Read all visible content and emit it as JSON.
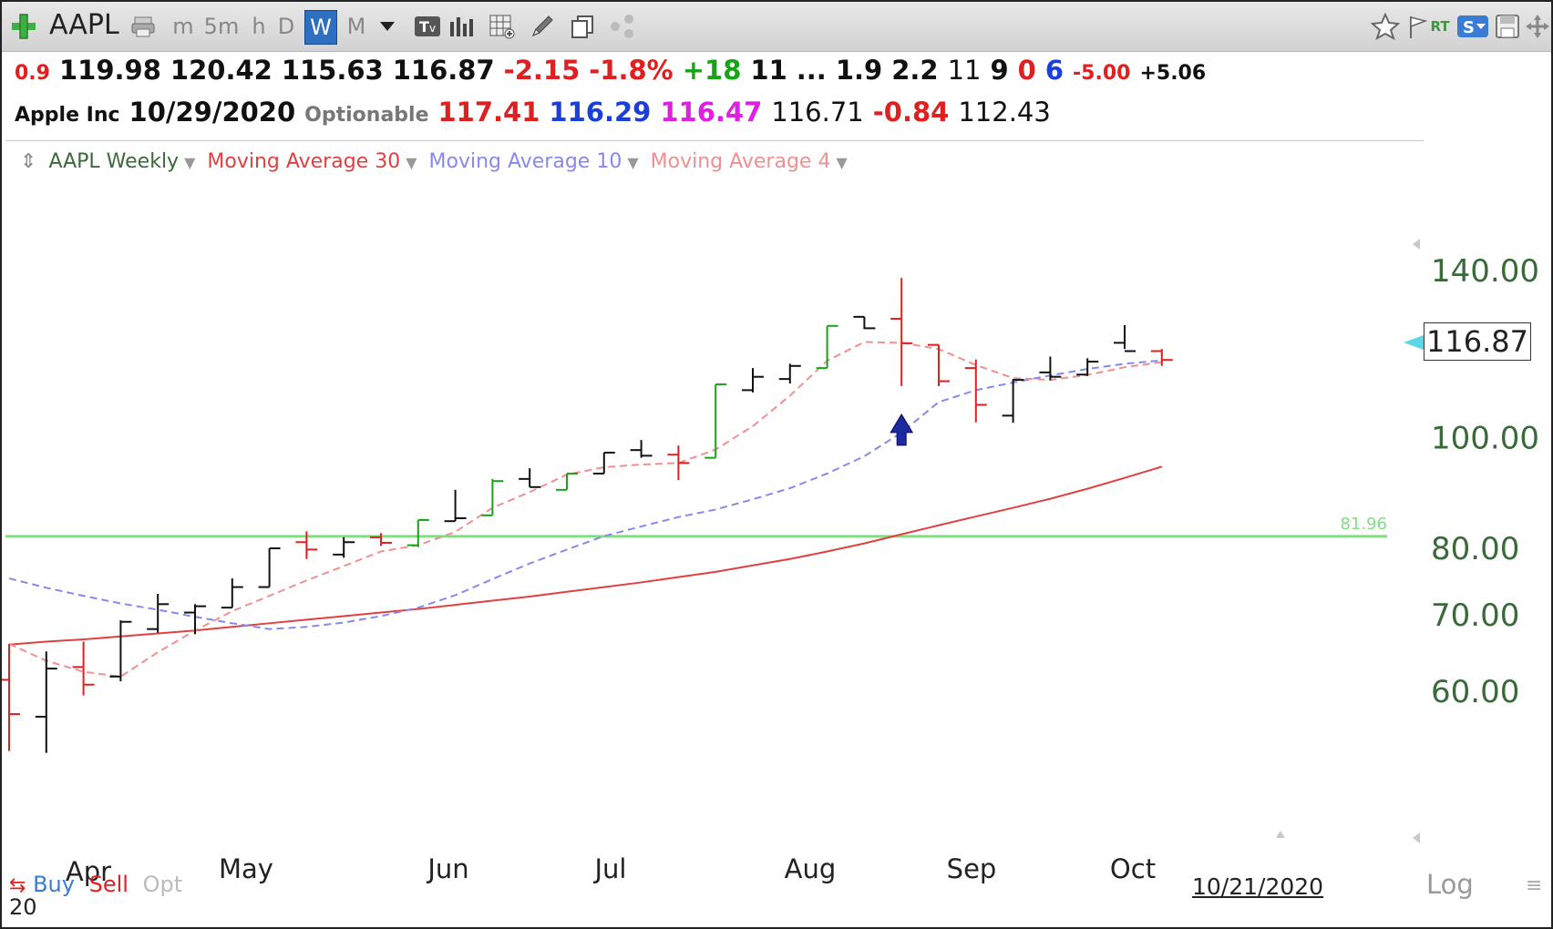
{
  "toolbar": {
    "symbol": "AAPL",
    "timeframes": [
      {
        "label": "m",
        "active": false
      },
      {
        "label": "5m",
        "active": false
      },
      {
        "label": "h",
        "active": false
      },
      {
        "label": "D",
        "active": false
      },
      {
        "label": "W",
        "active": true
      },
      {
        "label": "M",
        "active": false
      }
    ],
    "icons": [
      "add-icon",
      "print-icon",
      "dropdown-icon",
      "type-icon",
      "bar-chart-icon",
      "calculator-icon",
      "pencil-icon",
      "copy-icon",
      "share-icon",
      "star-icon",
      "flag-icon",
      "rt-icon",
      "s-badge-icon",
      "save-icon",
      "move-icon"
    ],
    "rt_label": "RT",
    "s_badge": "S"
  },
  "quote_row1": [
    {
      "text": "0.9",
      "color": "#e02020",
      "size": "s"
    },
    {
      "text": "119.98",
      "color": "#111111"
    },
    {
      "text": "120.42",
      "color": "#111111"
    },
    {
      "text": "115.63",
      "color": "#111111"
    },
    {
      "text": "116.87",
      "color": "#111111"
    },
    {
      "text": "-2.15",
      "color": "#e02020"
    },
    {
      "text": "-1.8%",
      "color": "#e02020"
    },
    {
      "text": "+18",
      "color": "#19a319"
    },
    {
      "text": "11",
      "color": "#111111"
    },
    {
      "text": "...",
      "color": "#111111"
    },
    {
      "text": "1.9",
      "color": "#111111"
    },
    {
      "text": "2.2",
      "color": "#111111"
    },
    {
      "text": "11",
      "color": "#111111",
      "weight": "n"
    },
    {
      "text": "9",
      "color": "#111111"
    },
    {
      "text": "0",
      "color": "#e02020"
    },
    {
      "text": "6",
      "color": "#1a40d8"
    },
    {
      "text": "-5.00",
      "color": "#e02020",
      "size": "s"
    },
    {
      "text": "+5.06",
      "color": "#111111",
      "size": "s"
    }
  ],
  "quote_row2": [
    {
      "text": "Apple Inc",
      "color": "#111111",
      "size": "s"
    },
    {
      "text": "10/29/2020",
      "color": "#111111"
    },
    {
      "text": "Optionable",
      "color": "#777777",
      "size": "s"
    },
    {
      "text": "117.41",
      "color": "#e02020"
    },
    {
      "text": "116.29",
      "color": "#1a40d8"
    },
    {
      "text": "116.47",
      "color": "#e020e0"
    },
    {
      "text": "116.71",
      "color": "#111111",
      "weight": "n"
    },
    {
      "text": "-0.84",
      "color": "#e02020"
    },
    {
      "text": "112.43",
      "color": "#111111",
      "weight": "n"
    }
  ],
  "legend": {
    "series": [
      {
        "label": "AAPL Weekly",
        "color": "#3a6a3a"
      },
      {
        "label": "Moving Average 30",
        "color": "#e04040"
      },
      {
        "label": "Moving Average 10",
        "color": "#8888f0"
      },
      {
        "label": "Moving Average 4",
        "color": "#f09090"
      }
    ]
  },
  "chart_data": {
    "type": "ohlc",
    "scale": "log",
    "xlabels": [
      "Apr",
      "May",
      "Jun",
      "Jul",
      "Aug",
      "Sep",
      "Oct"
    ],
    "yticks": [
      "140.00",
      "100.00",
      "80.00",
      "70.00",
      "60.00"
    ],
    "current_price": "116.87",
    "reference_line": {
      "value": 81.96,
      "label": "81.96",
      "color": "#7ee07e"
    },
    "bars": [
      {
        "o": 61.4,
        "h": 66.0,
        "l": 53.2,
        "c": 57.3,
        "color": "#e02020"
      },
      {
        "o": 57.0,
        "h": 65.0,
        "l": 53.0,
        "c": 62.8,
        "color": "#111111"
      },
      {
        "o": 63.0,
        "h": 66.3,
        "l": 59.5,
        "c": 60.8,
        "color": "#e02020"
      },
      {
        "o": 61.8,
        "h": 69.2,
        "l": 61.2,
        "c": 69.0,
        "color": "#111111"
      },
      {
        "o": 68.0,
        "h": 73.0,
        "l": 67.5,
        "c": 71.5,
        "color": "#111111"
      },
      {
        "o": 70.3,
        "h": 71.5,
        "l": 67.3,
        "c": 71.2,
        "color": "#111111"
      },
      {
        "o": 71.0,
        "h": 75.3,
        "l": 71.0,
        "c": 74.0,
        "color": "#111111"
      },
      {
        "o": 74.0,
        "h": 80.0,
        "l": 74.0,
        "c": 80.0,
        "color": "#111111"
      },
      {
        "o": 81.0,
        "h": 82.8,
        "l": 78.3,
        "c": 79.8,
        "color": "#e02020"
      },
      {
        "o": 79.0,
        "h": 81.8,
        "l": 78.5,
        "c": 81.0,
        "color": "#111111"
      },
      {
        "o": 81.8,
        "h": 82.5,
        "l": 80.4,
        "c": 80.9,
        "color": "#e02020"
      },
      {
        "o": 80.5,
        "h": 84.7,
        "l": 80.2,
        "c": 84.7,
        "color": "#19a319"
      },
      {
        "o": 84.5,
        "h": 90.0,
        "l": 84.5,
        "c": 85.0,
        "color": "#111111"
      },
      {
        "o": 85.5,
        "h": 92.0,
        "l": 85.5,
        "c": 91.6,
        "color": "#19a319"
      },
      {
        "o": 92.0,
        "h": 94.0,
        "l": 90.5,
        "c": 90.5,
        "color": "#111111"
      },
      {
        "o": 90.0,
        "h": 93.0,
        "l": 90.0,
        "c": 93.0,
        "color": "#19a319"
      },
      {
        "o": 93.0,
        "h": 97.0,
        "l": 93.0,
        "c": 97.0,
        "color": "#111111"
      },
      {
        "o": 97.5,
        "h": 99.5,
        "l": 96.0,
        "c": 96.4,
        "color": "#111111"
      },
      {
        "o": 96.6,
        "h": 98.4,
        "l": 91.8,
        "c": 95.0,
        "color": "#e02020"
      },
      {
        "o": 96.0,
        "h": 111.3,
        "l": 96.0,
        "c": 111.3,
        "color": "#19a319"
      },
      {
        "o": 110.0,
        "h": 115.0,
        "l": 109.5,
        "c": 113.0,
        "color": "#111111"
      },
      {
        "o": 112.5,
        "h": 116.0,
        "l": 111.5,
        "c": 115.5,
        "color": "#111111"
      },
      {
        "o": 115.0,
        "h": 125.2,
        "l": 115.0,
        "c": 125.2,
        "color": "#19a319"
      },
      {
        "o": 127.5,
        "h": 127.5,
        "l": 124.4,
        "c": 124.6,
        "color": "#111111"
      },
      {
        "o": 127.0,
        "h": 137.9,
        "l": 110.9,
        "c": 120.9,
        "color": "#e02020"
      },
      {
        "o": 120.5,
        "h": 120.5,
        "l": 110.9,
        "c": 112.0,
        "color": "#e02020"
      },
      {
        "o": 115.0,
        "h": 117.0,
        "l": 103.1,
        "c": 106.8,
        "color": "#e02020"
      },
      {
        "o": 104.5,
        "h": 112.5,
        "l": 103.0,
        "c": 112.3,
        "color": "#111111"
      },
      {
        "o": 114.0,
        "h": 117.7,
        "l": 112.2,
        "c": 113.0,
        "color": "#111111"
      },
      {
        "o": 113.5,
        "h": 117.3,
        "l": 113.2,
        "c": 116.5,
        "color": "#111111"
      },
      {
        "o": 121.0,
        "h": 125.4,
        "l": 119.5,
        "c": 119.0,
        "color": "#111111"
      },
      {
        "o": 119.0,
        "h": 119.5,
        "l": 115.5,
        "c": 116.9,
        "color": "#e02020"
      }
    ],
    "ma30": [
      65.9,
      66.3,
      66.6,
      67.0,
      67.4,
      67.8,
      68.3,
      68.8,
      69.3,
      69.8,
      70.3,
      70.8,
      71.4,
      72.0,
      72.6,
      73.3,
      74.0,
      74.7,
      75.5,
      76.3,
      77.3,
      78.3,
      79.5,
      80.8,
      82.3,
      83.8,
      85.3,
      86.8,
      88.4,
      90.2,
      92.2,
      94.3
    ],
    "ma10": [
      75.3,
      73.9,
      72.7,
      71.6,
      70.7,
      69.7,
      68.8,
      68.0,
      68.3,
      68.9,
      69.8,
      71.0,
      72.8,
      75.2,
      77.6,
      79.8,
      82.0,
      83.6,
      85.2,
      86.5,
      88.3,
      90.3,
      93.0,
      96.3,
      101.0,
      107.4,
      110.0,
      111.7,
      113.3,
      114.8,
      116.0,
      116.8
    ],
    "ma4": [
      66.0,
      63.8,
      62.4,
      61.8,
      64.9,
      67.8,
      70.5,
      72.7,
      75.0,
      77.2,
      79.5,
      80.5,
      82.7,
      86.8,
      89.6,
      92.8,
      94.2,
      94.7,
      95.0,
      97.6,
      102.3,
      108.8,
      116.7,
      121.2,
      121.0,
      119.5,
      115.7,
      112.7,
      112.3,
      113.4,
      115.2,
      116.4
    ],
    "signal_arrow_bar_index": 24,
    "axis_range": [
      52,
      152
    ]
  },
  "footer": {
    "buy": "Buy",
    "sell": "Sell",
    "opt": "Opt",
    "year": "20",
    "date": "10/21/2020",
    "log": "Log"
  }
}
